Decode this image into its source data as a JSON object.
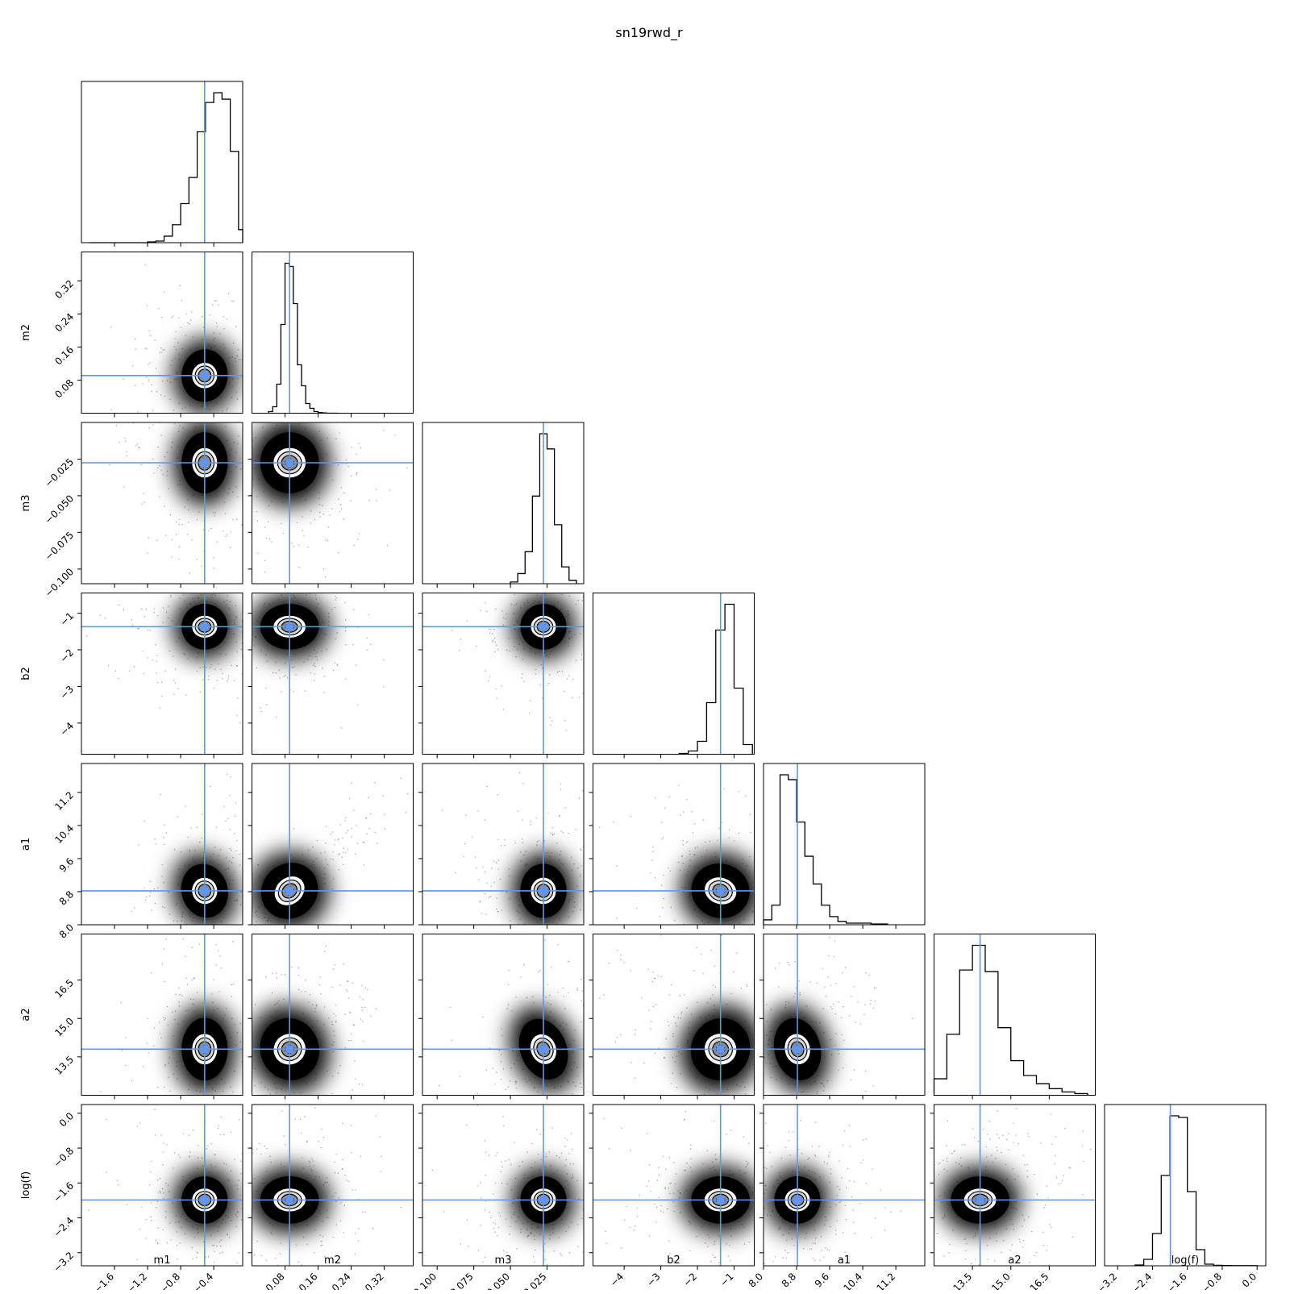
{
  "title": "sn19rwd_r",
  "truth_color": "#6495ed",
  "parameters": [
    {
      "name": "m1",
      "label": "m1",
      "range": [
        -2.0,
        -0.05
      ],
      "ticks": [
        -1.6,
        -1.2,
        -0.8,
        -0.4
      ],
      "tick_labels": [
        "−1.6",
        "−1.2",
        "−0.8",
        "−0.4"
      ],
      "truth": -0.51
    },
    {
      "name": "m2",
      "label": "m2",
      "range": [
        0.0,
        0.39
      ],
      "ticks": [
        0.08,
        0.16,
        0.24,
        0.32
      ],
      "tick_labels": [
        "0.08",
        "0.16",
        "0.24",
        "0.32"
      ],
      "truth": 0.091
    },
    {
      "name": "m3",
      "label": "m3",
      "range": [
        -0.11,
        0.0
      ],
      "ticks": [
        -0.1,
        -0.075,
        -0.05,
        -0.025
      ],
      "tick_labels": [
        "−0.100",
        "−0.075",
        "−0.050",
        "−0.025"
      ],
      "truth": -0.0275
    },
    {
      "name": "b2",
      "label": "b2",
      "range": [
        -4.85,
        -0.45
      ],
      "ticks": [
        -4,
        -3,
        -2,
        -1
      ],
      "tick_labels": [
        "−4",
        "−3",
        "−2",
        "−1"
      ],
      "truth": -1.37
    },
    {
      "name": "a1",
      "label": "a1",
      "range": [
        8.0,
        11.9
      ],
      "ticks": [
        8.0,
        8.8,
        9.6,
        10.4,
        11.2
      ],
      "tick_labels": [
        "8.0",
        "8.8",
        "9.6",
        "10.4",
        "11.2"
      ],
      "truth": 8.82
    },
    {
      "name": "a2",
      "label": "a2",
      "range": [
        12.0,
        18.3
      ],
      "ticks": [
        13.5,
        15.0,
        16.5
      ],
      "tick_labels": [
        "13.5",
        "15.0",
        "16.5"
      ],
      "truth": 13.8
    },
    {
      "name": "log(f)",
      "label": "log(f)",
      "range": [
        -3.5,
        0.2
      ],
      "ticks": [
        -3.2,
        -2.4,
        -1.6,
        -0.8,
        0.0
      ],
      "tick_labels": [
        "−3.2",
        "−2.4",
        "−1.6",
        "−0.8",
        "0.0"
      ],
      "truth": -1.99
    }
  ],
  "chart_data": {
    "type": "corner",
    "title": "sn19rwd_r",
    "parameters": [
      "m1",
      "m2",
      "m3",
      "b2",
      "a1",
      "a2",
      "log(f)"
    ],
    "truths": [
      -0.51,
      0.091,
      -0.0275,
      -1.37,
      8.82,
      13.8,
      -1.99
    ],
    "histograms": [
      {
        "parameter": "m1",
        "bin_edges": [
          -1.9,
          -1.8,
          -1.7,
          -1.6,
          -1.5,
          -1.4,
          -1.3,
          -1.2,
          -1.1,
          -1.0,
          -0.9,
          -0.8,
          -0.7,
          -0.6,
          -0.5,
          -0.4,
          -0.3,
          -0.2,
          -0.1,
          -0.05
        ],
        "counts": [
          0,
          0,
          0,
          0,
          0,
          0,
          0,
          0.005,
          0.01,
          0.04,
          0.11,
          0.24,
          0.4,
          0.68,
          0.86,
          0.92,
          0.88,
          0.56,
          0.08
        ]
      },
      {
        "parameter": "m2",
        "bin_edges": [
          0.04,
          0.05,
          0.06,
          0.07,
          0.08,
          0.09,
          0.1,
          0.11,
          0.12,
          0.13,
          0.14,
          0.15,
          0.16,
          0.17,
          0.18,
          0.19,
          0.2,
          0.21
        ],
        "counts": [
          0.01,
          0.04,
          0.18,
          0.55,
          0.93,
          0.91,
          0.68,
          0.3,
          0.17,
          0.06,
          0.03,
          0.01,
          0.004,
          0.002,
          0,
          0,
          0
        ]
      },
      {
        "parameter": "m3",
        "bin_edges": [
          -0.05,
          -0.045,
          -0.04,
          -0.035,
          -0.03,
          -0.025,
          -0.02,
          -0.015,
          -0.01,
          -0.005
        ],
        "counts": [
          0.01,
          0.06,
          0.19,
          0.52,
          0.89,
          0.8,
          0.35,
          0.1,
          0.02
        ]
      },
      {
        "parameter": "b2",
        "bin_edges": [
          -2.5,
          -2.25,
          -2.0,
          -1.75,
          -1.5,
          -1.25,
          -1.0,
          -0.75,
          -0.5
        ],
        "counts": [
          0.005,
          0.02,
          0.08,
          0.32,
          0.77,
          0.93,
          0.41,
          0.06
        ]
      },
      {
        "parameter": "a1",
        "bin_edges": [
          8.0,
          8.2,
          8.4,
          8.6,
          8.8,
          9.0,
          9.2,
          9.4,
          9.6,
          9.8,
          10.0,
          10.2,
          10.4,
          10.6,
          10.8,
          11.0
        ],
        "counts": [
          0.03,
          0.12,
          0.92,
          0.89,
          0.63,
          0.42,
          0.25,
          0.12,
          0.05,
          0.02,
          0.01,
          0.01,
          0.01,
          0.005,
          0.005
        ]
      },
      {
        "parameter": "a2",
        "bin_edges": [
          12.0,
          12.5,
          13.0,
          13.5,
          14.0,
          14.5,
          15.0,
          15.5,
          16.0,
          16.5,
          17.0,
          17.5,
          18.0
        ],
        "counts": [
          0.1,
          0.37,
          0.76,
          0.91,
          0.75,
          0.41,
          0.21,
          0.12,
          0.07,
          0.04,
          0.02,
          0.01
        ]
      },
      {
        "parameter": "log(f)",
        "bin_edges": [
          -2.8,
          -2.6,
          -2.4,
          -2.2,
          -2.0,
          -1.8,
          -1.6,
          -1.4,
          -1.2,
          -1.0,
          -0.8,
          -0.6,
          -0.4,
          -0.2,
          0.0
        ],
        "counts": [
          0.005,
          0.04,
          0.2,
          0.56,
          0.93,
          0.92,
          0.46,
          0.1,
          0.01,
          0.003,
          0.002,
          0.001,
          0.001,
          0.001
        ]
      }
    ],
    "pair_panels": [
      {
        "x": "m1",
        "y": "m2"
      },
      {
        "x": "m1",
        "y": "m3"
      },
      {
        "x": "m2",
        "y": "m3"
      },
      {
        "x": "m1",
        "y": "b2"
      },
      {
        "x": "m2",
        "y": "b2"
      },
      {
        "x": "m3",
        "y": "b2"
      },
      {
        "x": "m1",
        "y": "a1"
      },
      {
        "x": "m2",
        "y": "a1"
      },
      {
        "x": "m3",
        "y": "a1"
      },
      {
        "x": "b2",
        "y": "a1"
      },
      {
        "x": "m1",
        "y": "a2"
      },
      {
        "x": "m2",
        "y": "a2"
      },
      {
        "x": "m3",
        "y": "a2"
      },
      {
        "x": "b2",
        "y": "a2"
      },
      {
        "x": "a1",
        "y": "a2"
      },
      {
        "x": "m1",
        "y": "log(f)"
      },
      {
        "x": "m2",
        "y": "log(f)"
      },
      {
        "x": "m3",
        "y": "log(f)"
      },
      {
        "x": "b2",
        "y": "log(f)"
      },
      {
        "x": "a1",
        "y": "log(f)"
      },
      {
        "x": "a2",
        "y": "log(f)"
      }
    ],
    "grid": false,
    "legend": "none"
  }
}
